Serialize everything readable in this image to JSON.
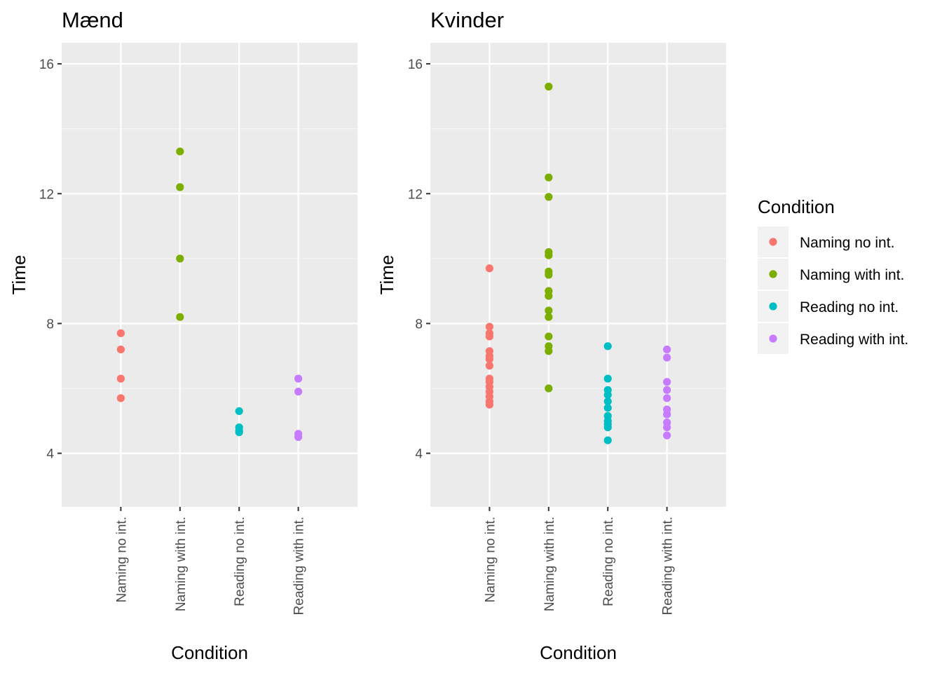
{
  "chart_data": [
    {
      "type": "scatter",
      "title": "Mænd",
      "xlabel": "Condition",
      "ylabel": "Time",
      "categories": [
        "Naming no int.",
        "Naming with int.",
        "Reading no int.",
        "Reading with int."
      ],
      "ylim": [
        2.35,
        16.65
      ],
      "yticks": [
        4,
        8,
        12,
        16
      ],
      "grid": true,
      "series": [
        {
          "category": "Naming no int.",
          "color": "#F8766D",
          "values": [
            7.7,
            7.2,
            6.3,
            5.7
          ]
        },
        {
          "category": "Naming with int.",
          "color": "#7CAE00",
          "values": [
            13.3,
            12.2,
            10.0,
            8.2
          ]
        },
        {
          "category": "Reading no int.",
          "color": "#00BFC4",
          "values": [
            5.3,
            4.8,
            4.7,
            4.65
          ]
        },
        {
          "category": "Reading with int.",
          "color": "#C77CFF",
          "values": [
            6.3,
            5.9,
            4.6,
            4.5
          ]
        }
      ]
    },
    {
      "type": "scatter",
      "title": "Kvinder",
      "xlabel": "Condition",
      "ylabel": "Time",
      "categories": [
        "Naming no int.",
        "Naming with int.",
        "Reading no int.",
        "Reading with int."
      ],
      "ylim": [
        2.35,
        16.65
      ],
      "yticks": [
        4,
        8,
        12,
        16
      ],
      "grid": true,
      "series": [
        {
          "category": "Naming no int.",
          "color": "#F8766D",
          "values": [
            9.7,
            7.9,
            7.7,
            7.6,
            7.15,
            7.0,
            6.9,
            6.7,
            6.3,
            6.2,
            6.05,
            5.9,
            5.75,
            5.6,
            5.5
          ]
        },
        {
          "category": "Naming with int.",
          "color": "#7CAE00",
          "values": [
            15.3,
            12.5,
            11.9,
            10.2,
            10.1,
            9.6,
            9.5,
            9.0,
            8.85,
            8.4,
            8.2,
            7.6,
            7.3,
            7.15,
            6.0
          ]
        },
        {
          "category": "Reading no int.",
          "color": "#00BFC4",
          "values": [
            7.3,
            6.3,
            5.95,
            5.8,
            5.6,
            5.4,
            5.15,
            5.0,
            4.9,
            4.8,
            4.4
          ]
        },
        {
          "category": "Reading with int.",
          "color": "#C77CFF",
          "values": [
            7.2,
            6.95,
            6.2,
            5.95,
            5.7,
            5.35,
            5.2,
            4.95,
            4.8,
            4.55
          ]
        }
      ]
    }
  ],
  "legend": {
    "title": "Condition",
    "placement": "right",
    "items": [
      {
        "label": "Naming no int.",
        "color": "#F8766D"
      },
      {
        "label": "Naming with int.",
        "color": "#7CAE00"
      },
      {
        "label": "Reading no int.",
        "color": "#00BFC4"
      },
      {
        "label": "Reading with int.",
        "color": "#C77CFF"
      }
    ]
  }
}
